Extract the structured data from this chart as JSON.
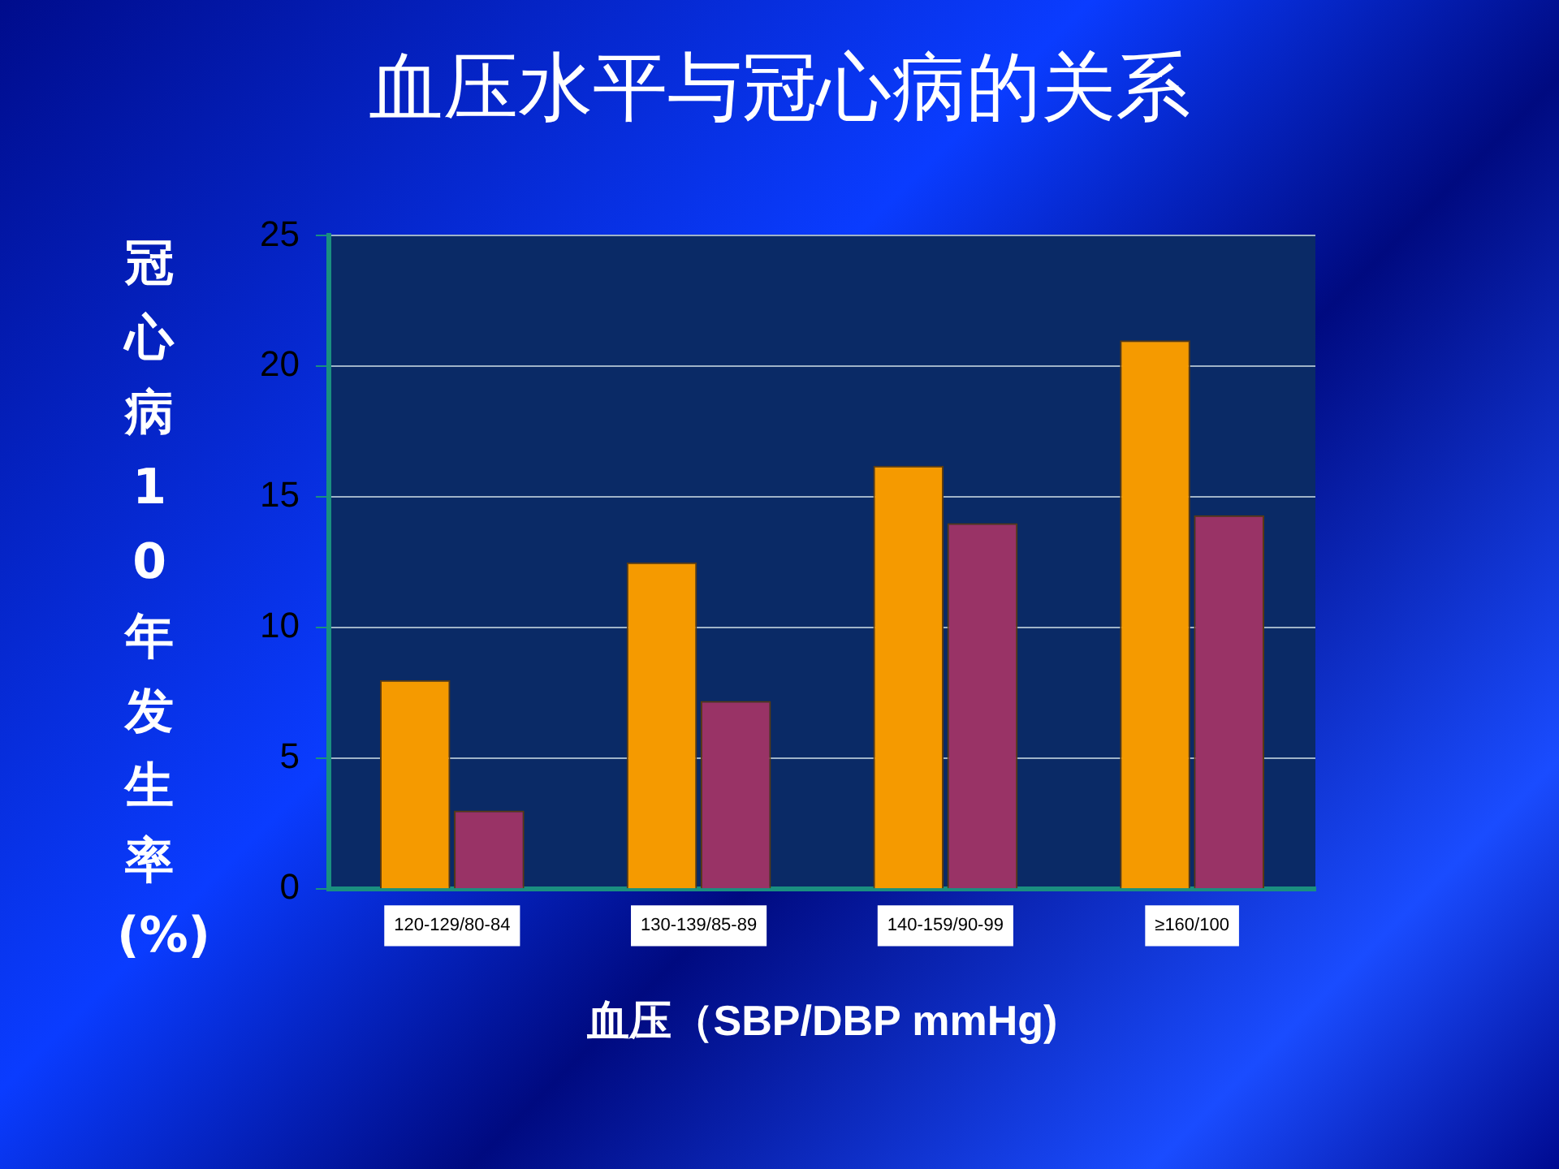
{
  "chart_data": {
    "type": "bar",
    "title": "血压水平与冠心病的关系",
    "xlabel": "血压（SBP/DBP mmHg)",
    "ylabel": "冠心病10年发生率(%)",
    "categories": [
      "120-129/80-84",
      "130-139/85-89",
      "140-159/90-99",
      "≥160/100"
    ],
    "series": [
      {
        "color": "#f59a00",
        "values": [
          8,
          12.5,
          16.2,
          21
        ]
      },
      {
        "color": "#993366",
        "values": [
          3,
          7.2,
          14,
          14.3
        ]
      }
    ],
    "ylim": [
      0,
      25
    ],
    "yticks": [
      0,
      5,
      10,
      15,
      20,
      25
    ],
    "grid": "y"
  }
}
